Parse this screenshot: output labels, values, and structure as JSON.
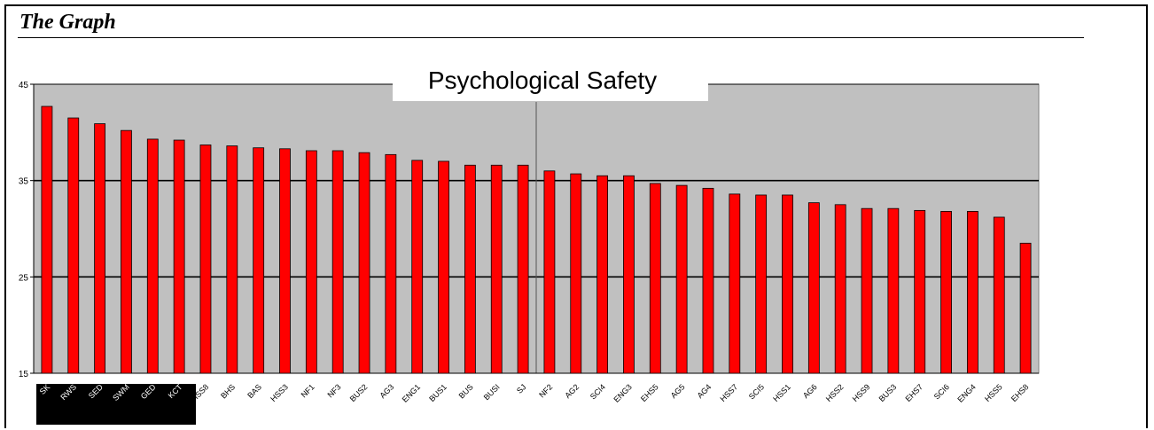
{
  "section_heading": "The Graph",
  "chart_data": {
    "type": "bar",
    "title": "Psychological Safety",
    "xlabel": "",
    "ylabel": "",
    "ylim": [
      15,
      45
    ],
    "yticks": [
      15,
      25,
      35,
      45
    ],
    "grid": true,
    "legend": "none",
    "colors": {
      "bar": "#ff0000",
      "plot_background": "#c0c0c0",
      "gridline": "#000000",
      "highlight_label_background": "#000000",
      "highlight_label_text": "#ffffff"
    },
    "divider_after_category": "SJ",
    "highlighted_categories": [
      "SK",
      "RWS",
      "SED",
      "SWM",
      "GED",
      "KCT"
    ],
    "categories": [
      "SK",
      "RWS",
      "SED",
      "SWM",
      "GED",
      "KCT",
      "HSS8",
      "BHS",
      "BAS",
      "HSS3",
      "NF1",
      "NF3",
      "BUS2",
      "AG3",
      "ENG1",
      "BUS1",
      "BUS",
      "BUSI",
      "SJ",
      "NF2",
      "AG2",
      "SCI4",
      "ENG3",
      "EHS5",
      "AG5",
      "AG4",
      "HSS7",
      "SCI5",
      "HSS1",
      "AG6",
      "HSS2",
      "HSS9",
      "BUS3",
      "EHS7",
      "SCI6",
      "ENG4",
      "HSS5",
      "EHS8"
    ],
    "values": [
      42.7,
      41.5,
      40.9,
      40.2,
      39.3,
      39.2,
      38.7,
      38.6,
      38.4,
      38.3,
      38.1,
      38.1,
      37.9,
      37.7,
      37.1,
      37.0,
      36.6,
      36.6,
      36.6,
      36.0,
      35.7,
      35.5,
      35.5,
      34.7,
      34.5,
      34.2,
      33.6,
      33.5,
      33.5,
      32.7,
      32.5,
      32.1,
      32.1,
      31.9,
      31.8,
      31.8,
      31.2,
      28.5
    ]
  }
}
